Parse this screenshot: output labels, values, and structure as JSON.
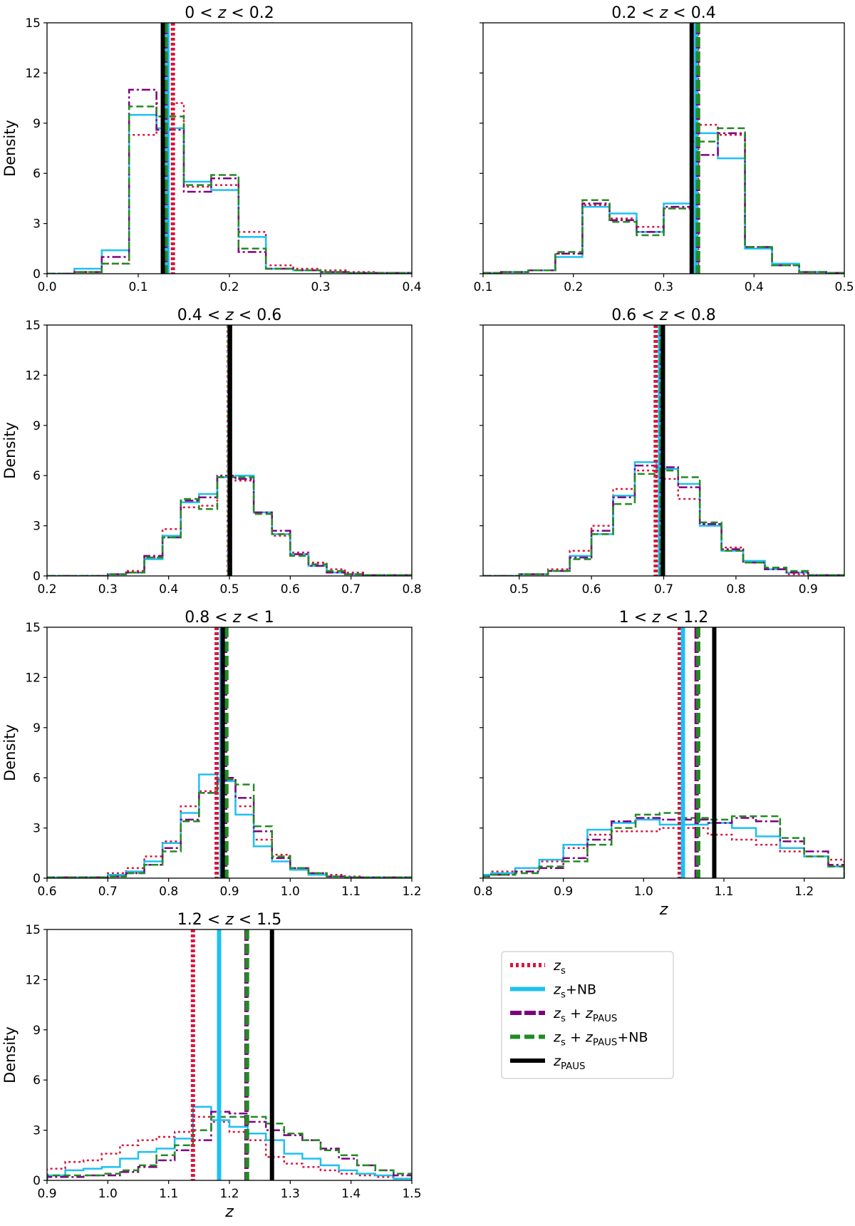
{
  "figure": {
    "ylabel": "Density",
    "xlabel": "z"
  },
  "colors": {
    "zs": "#dc143c",
    "zs_nb": "#1ec0f2",
    "zs_zpaus": "#800080",
    "zs_zpaus_nb": "#228b22",
    "zpaus": "#000000"
  },
  "legend": {
    "entries": [
      {
        "key": "zs",
        "label": "z_s"
      },
      {
        "key": "zs_nb",
        "label": "z_s+NB"
      },
      {
        "key": "zs_zpaus",
        "label": "z_s + z_PAUS"
      },
      {
        "key": "zs_zpaus_nb",
        "label": "z_s + z_PAUS+NB"
      },
      {
        "key": "zpaus",
        "label": "z_PAUS"
      }
    ]
  },
  "chart_data": [
    {
      "type": "bar",
      "title": "0 < z < 0.2",
      "xlabel": "",
      "ylabel": "Density",
      "xlim": [
        0.0,
        0.4
      ],
      "ylim": [
        0,
        15
      ],
      "xticks": [
        "0.0",
        "0.1",
        "0.2",
        "0.3",
        "0.4"
      ],
      "yticks": [
        "0",
        "3",
        "6",
        "9",
        "12",
        "15"
      ],
      "bin_edges": [
        0.0,
        0.03,
        0.06,
        0.09,
        0.12,
        0.15,
        0.18,
        0.21,
        0.24,
        0.27,
        0.3,
        0.33,
        0.36,
        0.4
      ],
      "series": [
        {
          "key": "zs",
          "values": [
            0,
            0.1,
            0.6,
            8.3,
            10.2,
            5.2,
            5.3,
            2.5,
            0.5,
            0.3,
            0.2,
            0.1,
            0.05
          ]
        },
        {
          "key": "zs_nb",
          "values": [
            0,
            0.3,
            1.4,
            9.5,
            8.7,
            5.5,
            5.0,
            2.2,
            0.3,
            0.2,
            0.1,
            0.05,
            0.05
          ]
        },
        {
          "key": "zs_zpaus",
          "values": [
            0,
            0.1,
            1.0,
            11.0,
            8.6,
            4.9,
            5.7,
            1.3,
            0.3,
            0.2,
            0.1,
            0.05,
            0.05
          ]
        },
        {
          "key": "zs_zpaus_nb",
          "values": [
            0,
            0.1,
            0.6,
            10.0,
            9.4,
            5.3,
            5.9,
            1.5,
            0.3,
            0.2,
            0.1,
            0.05,
            0.05
          ]
        }
      ],
      "medians": {
        "zs": 0.138,
        "zs_nb": 0.132,
        "zs_zpaus": 0.13,
        "zs_zpaus_nb": 0.13,
        "zpaus": 0.127
      }
    },
    {
      "type": "bar",
      "title": "0.2 < z < 0.4",
      "xlabel": "",
      "ylabel": "",
      "xlim": [
        0.1,
        0.5
      ],
      "ylim": [
        0,
        15
      ],
      "xticks": [
        "0.1",
        "0.2",
        "0.3",
        "0.4",
        "0.5"
      ],
      "yticks": [],
      "bin_edges": [
        0.1,
        0.12,
        0.15,
        0.18,
        0.21,
        0.24,
        0.27,
        0.3,
        0.33,
        0.36,
        0.39,
        0.42,
        0.45,
        0.48,
        0.5
      ],
      "series": [
        {
          "key": "zs",
          "values": [
            0.05,
            0.1,
            0.2,
            1.2,
            4.1,
            3.3,
            2.8,
            3.9,
            8.9,
            8.3,
            1.6,
            0.5,
            0.1,
            0.05
          ]
        },
        {
          "key": "zs_nb",
          "values": [
            0.05,
            0.1,
            0.2,
            1.0,
            4.0,
            3.6,
            2.5,
            4.2,
            8.4,
            6.9,
            1.5,
            0.6,
            0.1,
            0.05
          ]
        },
        {
          "key": "zs_zpaus",
          "values": [
            0.05,
            0.1,
            0.2,
            1.2,
            4.2,
            3.2,
            2.5,
            4.0,
            7.1,
            8.4,
            1.6,
            0.5,
            0.1,
            0.05
          ]
        },
        {
          "key": "zs_zpaus_nb",
          "values": [
            0.05,
            0.1,
            0.2,
            1.3,
            4.4,
            3.1,
            2.3,
            3.9,
            7.9,
            8.7,
            1.6,
            0.5,
            0.1,
            0.05
          ]
        }
      ],
      "medians": {
        "zs": 0.337,
        "zs_nb": 0.336,
        "zs_zpaus": 0.338,
        "zs_zpaus_nb": 0.338,
        "zpaus": 0.331
      }
    },
    {
      "type": "bar",
      "title": "0.4 < z < 0.6",
      "xlabel": "",
      "ylabel": "Density",
      "xlim": [
        0.2,
        0.8
      ],
      "ylim": [
        0,
        15
      ],
      "xticks": [
        "0.2",
        "0.3",
        "0.4",
        "0.5",
        "0.6",
        "0.7",
        "0.8"
      ],
      "yticks": [
        "0",
        "3",
        "6",
        "9",
        "12",
        "15"
      ],
      "bin_edges": [
        0.2,
        0.3,
        0.33,
        0.36,
        0.39,
        0.42,
        0.45,
        0.48,
        0.51,
        0.54,
        0.57,
        0.6,
        0.63,
        0.66,
        0.69,
        0.72,
        0.8
      ],
      "series": [
        {
          "key": "zs",
          "values": [
            0,
            0.1,
            0.3,
            1.1,
            2.8,
            4.1,
            4.2,
            5.9,
            5.7,
            3.8,
            2.4,
            1.4,
            0.8,
            0.4,
            0.2,
            0.05
          ]
        },
        {
          "key": "zs_nb",
          "values": [
            0,
            0.1,
            0.2,
            1.0,
            2.4,
            4.4,
            4.9,
            5.9,
            6.0,
            3.8,
            2.5,
            1.3,
            0.6,
            0.2,
            0.1,
            0.05
          ]
        },
        {
          "key": "zs_zpaus",
          "values": [
            0,
            0.1,
            0.2,
            1.2,
            2.3,
            4.5,
            4.7,
            6.0,
            5.8,
            3.8,
            2.7,
            1.3,
            0.6,
            0.2,
            0.1,
            0.05
          ]
        },
        {
          "key": "zs_zpaus_nb",
          "values": [
            0,
            0.1,
            0.2,
            1.1,
            2.3,
            4.6,
            4.0,
            5.9,
            5.9,
            3.7,
            2.5,
            1.2,
            0.7,
            0.3,
            0.1,
            0.05
          ]
        }
      ],
      "medians": {
        "zs": 0.499,
        "zs_nb": 0.5,
        "zs_zpaus": 0.5,
        "zs_zpaus_nb": 0.5,
        "zpaus": 0.501
      }
    },
    {
      "type": "bar",
      "title": "0.6 < z < 0.8",
      "xlabel": "",
      "ylabel": "",
      "xlim": [
        0.45,
        0.95
      ],
      "ylim": [
        0,
        15
      ],
      "xticks": [
        "0.5",
        "0.6",
        "0.7",
        "0.8",
        "0.9"
      ],
      "yticks": [],
      "bin_edges": [
        0.45,
        0.5,
        0.54,
        0.57,
        0.6,
        0.63,
        0.66,
        0.69,
        0.72,
        0.75,
        0.78,
        0.81,
        0.84,
        0.87,
        0.9,
        0.95
      ],
      "series": [
        {
          "key": "zs",
          "values": [
            0,
            0.1,
            0.4,
            1.5,
            3.0,
            5.2,
            6.3,
            5.8,
            4.6,
            3.1,
            1.7,
            0.8,
            0.4,
            0.1,
            0.05
          ]
        },
        {
          "key": "zs_nb",
          "values": [
            0,
            0.1,
            0.3,
            1.2,
            2.5,
            4.8,
            6.8,
            6.4,
            5.5,
            3.0,
            1.5,
            0.9,
            0.4,
            0.2,
            0.05
          ]
        },
        {
          "key": "zs_zpaus",
          "values": [
            0,
            0.1,
            0.3,
            1.1,
            2.7,
            4.7,
            6.6,
            6.5,
            5.3,
            3.1,
            1.6,
            0.8,
            0.4,
            0.2,
            0.05
          ]
        },
        {
          "key": "zs_zpaus_nb",
          "values": [
            0,
            0.1,
            0.3,
            1.0,
            2.5,
            4.3,
            6.1,
            6.3,
            5.9,
            3.2,
            1.5,
            0.8,
            0.5,
            0.3,
            0.05
          ]
        }
      ],
      "medians": {
        "zs": 0.689,
        "zs_nb": 0.695,
        "zs_zpaus": 0.697,
        "zs_zpaus_nb": 0.697,
        "zpaus": 0.699
      }
    },
    {
      "type": "bar",
      "title": "0.8 < z < 1",
      "xlabel": "",
      "ylabel": "Density",
      "xlim": [
        0.6,
        1.2
      ],
      "ylim": [
        0,
        15
      ],
      "xticks": [
        "0.6",
        "0.7",
        "0.8",
        "0.9",
        "1.0",
        "1.1",
        "1.2"
      ],
      "yticks": [
        "0",
        "3",
        "6",
        "9",
        "12",
        "15"
      ],
      "bin_edges": [
        0.6,
        0.7,
        0.73,
        0.76,
        0.79,
        0.82,
        0.85,
        0.88,
        0.91,
        0.94,
        0.97,
        1.0,
        1.03,
        1.06,
        1.09,
        1.12,
        1.2
      ],
      "series": [
        {
          "key": "zs",
          "values": [
            0.05,
            0.3,
            0.6,
            1.3,
            2.2,
            4.3,
            5.2,
            5.8,
            4.3,
            2.3,
            1.4,
            0.6,
            0.3,
            0.2,
            0.1,
            0.05
          ]
        },
        {
          "key": "zs_nb",
          "values": [
            0.05,
            0.2,
            0.4,
            1.0,
            2.1,
            3.9,
            6.2,
            5.8,
            3.8,
            1.9,
            1.0,
            0.5,
            0.2,
            0.1,
            0.05,
            0.05
          ]
        },
        {
          "key": "zs_zpaus",
          "values": [
            0.05,
            0.1,
            0.3,
            0.8,
            1.8,
            3.5,
            5.1,
            6.0,
            4.8,
            2.8,
            1.2,
            0.6,
            0.3,
            0.1,
            0.05,
            0.05
          ]
        },
        {
          "key": "zs_zpaus_nb",
          "values": [
            0.05,
            0.1,
            0.3,
            0.8,
            1.6,
            3.4,
            5.1,
            5.9,
            5.6,
            3.1,
            1.3,
            0.6,
            0.3,
            0.1,
            0.05,
            0.05
          ]
        }
      ],
      "medians": {
        "zs": 0.879,
        "zs_nb": 0.887,
        "zs_zpaus": 0.893,
        "zs_zpaus_nb": 0.895,
        "zpaus": 0.889
      }
    },
    {
      "type": "bar",
      "title": "1 < z < 1.2",
      "xlabel": "z",
      "ylabel": "",
      "xlim": [
        0.8,
        1.25
      ],
      "ylim": [
        0,
        15
      ],
      "xticks": [
        "0.8",
        "0.9",
        "1.0",
        "1.1",
        "1.2"
      ],
      "yticks": [],
      "bin_edges": [
        0.8,
        0.81,
        0.84,
        0.87,
        0.9,
        0.93,
        0.96,
        0.99,
        1.02,
        1.05,
        1.08,
        1.11,
        1.14,
        1.17,
        1.2,
        1.23,
        1.25
      ],
      "series": [
        {
          "key": "zs",
          "values": [
            0.2,
            0.4,
            0.6,
            1.0,
            1.8,
            2.6,
            2.8,
            2.8,
            3.0,
            3.0,
            2.6,
            2.3,
            2.0,
            1.6,
            1.3,
            1.1
          ]
        },
        {
          "key": "zs_nb",
          "values": [
            0.2,
            0.3,
            0.6,
            1.1,
            2.0,
            2.9,
            3.3,
            3.5,
            3.2,
            3.2,
            3.3,
            3.0,
            2.5,
            1.8,
            1.3,
            0.7
          ]
        },
        {
          "key": "zs_zpaus",
          "values": [
            0.1,
            0.2,
            0.4,
            0.6,
            1.2,
            2.3,
            3.4,
            3.6,
            3.5,
            3.5,
            3.3,
            3.6,
            3.4,
            2.2,
            1.6,
            0.8
          ]
        },
        {
          "key": "zs_zpaus_nb",
          "values": [
            0.1,
            0.2,
            0.3,
            0.7,
            1.0,
            2.0,
            3.0,
            3.8,
            3.9,
            3.6,
            3.5,
            3.7,
            3.7,
            2.4,
            1.3,
            0.7
          ]
        }
      ],
      "medians": {
        "zs": 1.045,
        "zs_nb": 1.049,
        "zs_zpaus": 1.066,
        "zs_zpaus_nb": 1.068,
        "zpaus": 1.088
      }
    },
    {
      "type": "bar",
      "title": "1.2 < z < 1.5",
      "xlabel": "z",
      "ylabel": "Density",
      "xlim": [
        0.9,
        1.5
      ],
      "ylim": [
        0,
        15
      ],
      "xticks": [
        "0.9",
        "1.0",
        "1.1",
        "1.2",
        "1.3",
        "1.4",
        "1.5"
      ],
      "yticks": [
        "0",
        "3",
        "6",
        "9",
        "12",
        "15"
      ],
      "bin_edges": [
        0.9,
        0.93,
        0.96,
        0.99,
        1.02,
        1.05,
        1.08,
        1.11,
        1.14,
        1.17,
        1.2,
        1.23,
        1.26,
        1.29,
        1.32,
        1.35,
        1.38,
        1.41,
        1.44,
        1.47,
        1.5
      ],
      "series": [
        {
          "key": "zs",
          "values": [
            0.7,
            1.1,
            1.2,
            1.6,
            2.1,
            2.4,
            2.6,
            2.9,
            3.8,
            3.5,
            2.9,
            2.4,
            1.4,
            1.0,
            0.8,
            0.6,
            0.4,
            0.3,
            0.2,
            0.1
          ]
        },
        {
          "key": "zs_nb",
          "values": [
            0.3,
            0.6,
            0.7,
            0.8,
            1.3,
            1.7,
            1.9,
            2.5,
            4.4,
            3.6,
            3.2,
            2.8,
            2.4,
            1.6,
            1.3,
            0.9,
            0.6,
            0.4,
            0.3,
            0.1
          ]
        },
        {
          "key": "zs_zpaus",
          "values": [
            0.2,
            0.2,
            0.3,
            0.3,
            0.5,
            0.8,
            1.2,
            1.8,
            2.4,
            4.1,
            4.0,
            3.5,
            3.0,
            2.7,
            2.4,
            1.9,
            1.3,
            0.9,
            0.6,
            0.3
          ]
        },
        {
          "key": "zs_zpaus_nb",
          "values": [
            0.3,
            0.3,
            0.3,
            0.4,
            0.6,
            0.9,
            1.5,
            2.1,
            3.0,
            3.8,
            3.8,
            3.8,
            3.4,
            2.8,
            2.4,
            1.8,
            1.5,
            0.9,
            0.6,
            0.4
          ]
        }
      ],
      "medians": {
        "zs": 1.14,
        "zs_nb": 1.183,
        "zs_zpaus": 1.228,
        "zs_zpaus_nb": 1.229,
        "zpaus": 1.27
      }
    }
  ]
}
